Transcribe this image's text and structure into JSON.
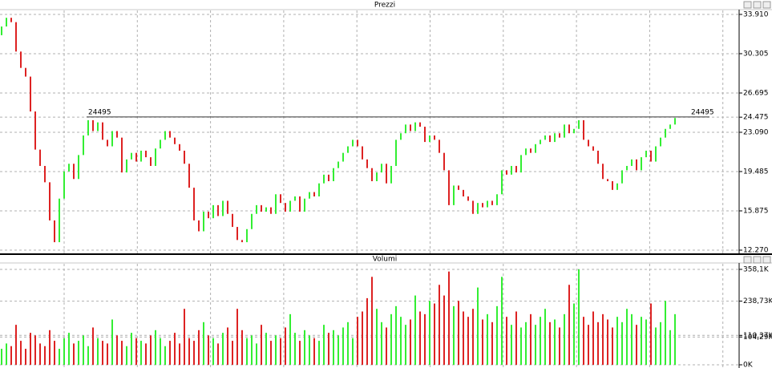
{
  "chart_data": [
    {
      "type": "candlestick",
      "title": "Prezzi",
      "level": 24495,
      "up_color": "#33ee33",
      "down_color": "#dd2222",
      "open": [
        32000,
        32800,
        33600,
        33200,
        30500,
        29000,
        28200,
        25000,
        21500,
        20000,
        18500,
        15000,
        13000,
        17000,
        19500,
        20200,
        18800,
        21000,
        22800,
        24200,
        23200,
        24000,
        22400,
        21800,
        23200,
        22600,
        19400,
        20600,
        21200,
        20400,
        21400,
        20800,
        20000,
        21600,
        22400,
        23200,
        22600,
        22000,
        21400,
        20200,
        18000,
        15000,
        14000,
        15800,
        15200,
        16400,
        15400,
        16800,
        15600,
        14400,
        13200,
        13000,
        14200,
        15600,
        16400,
        15800,
        16200,
        15600,
        17400,
        16600,
        15800,
        16800,
        17200,
        15800,
        17000,
        17600,
        17200,
        18400,
        19200,
        18600,
        19800,
        20400,
        21200,
        21800,
        22400,
        21800,
        20600,
        19800,
        18600,
        19400,
        20200,
        18400,
        20000,
        22400,
        23000,
        23800,
        23200,
        24000,
        23600,
        22200,
        22800,
        22400,
        21200,
        19600,
        16400,
        18200,
        17800,
        17200,
        16800,
        15600,
        16600,
        16200,
        16800,
        16400,
        17400,
        19600,
        19200,
        20000,
        19400,
        21000,
        21600,
        21200,
        22000,
        22400,
        22800,
        22200,
        23000,
        22600,
        23800,
        23000,
        23400,
        24200,
        22400,
        21800,
        21400,
        20200,
        18800,
        18600,
        17800,
        18400,
        19600,
        20000,
        20600,
        19600,
        20800,
        21400,
        20400,
        21800,
        22600,
        23400,
        23800
      ],
      "close": [
        32800,
        33600,
        33200,
        30500,
        29000,
        28200,
        25000,
        21500,
        20000,
        18500,
        15000,
        13000,
        17000,
        19500,
        20200,
        18800,
        21000,
        22800,
        24200,
        23200,
        24000,
        22400,
        21800,
        23200,
        22600,
        19400,
        20600,
        21200,
        20400,
        21400,
        20800,
        20000,
        21600,
        22400,
        23200,
        22600,
        22000,
        21400,
        20200,
        18000,
        15000,
        14000,
        15800,
        15200,
        16400,
        15400,
        16800,
        15600,
        14400,
        13200,
        13000,
        14200,
        15600,
        16400,
        15800,
        16200,
        15600,
        17400,
        16600,
        15800,
        16800,
        17200,
        15800,
        17000,
        17600,
        17200,
        18400,
        19200,
        18600,
        19800,
        20400,
        21200,
        21800,
        22400,
        21800,
        20600,
        19800,
        18600,
        19400,
        20200,
        18400,
        20000,
        22400,
        23000,
        23800,
        23200,
        24000,
        23600,
        22200,
        22800,
        22400,
        21200,
        19600,
        16400,
        18200,
        17800,
        17200,
        16800,
        15600,
        16600,
        16200,
        16800,
        16400,
        17400,
        19600,
        19200,
        20000,
        19400,
        21000,
        21600,
        21200,
        22000,
        22400,
        22800,
        22200,
        23000,
        22600,
        23800,
        23000,
        23400,
        24200,
        22400,
        21800,
        21400,
        20200,
        18800,
        18600,
        17800,
        18400,
        19600,
        20000,
        20600,
        19600,
        20800,
        21400,
        20400,
        21800,
        22600,
        23400,
        23800,
        24400
      ],
      "ylim": [
        11975,
        34350
      ],
      "yticks": [
        {
          "value": 33910,
          "label": "33.910"
        },
        {
          "value": 30305,
          "label": "30.305"
        },
        {
          "value": 26695,
          "label": "26.695"
        },
        {
          "value": 24475,
          "label": "24.475"
        },
        {
          "value": 23090,
          "label": "23.090"
        },
        {
          "value": 19485,
          "label": "19.485"
        },
        {
          "value": 15875,
          "label": "15.875"
        },
        {
          "value": 12270,
          "label": "12.270"
        }
      ]
    },
    {
      "type": "bar",
      "title": "Volumi",
      "values": [
        60000,
        80000,
        70000,
        150000,
        90000,
        60000,
        120000,
        110000,
        80000,
        70000,
        130000,
        90000,
        60000,
        100000,
        120000,
        80000,
        90000,
        110000,
        70000,
        140000,
        100000,
        90000,
        80000,
        170000,
        110000,
        90000,
        70000,
        120000,
        100000,
        90000,
        80000,
        110000,
        130000,
        100000,
        70000,
        90000,
        120000,
        80000,
        210000,
        100000,
        90000,
        130000,
        160000,
        110000,
        100000,
        80000,
        120000,
        140000,
        90000,
        210000,
        130000,
        100000,
        110000,
        80000,
        150000,
        120000,
        90000,
        110000,
        100000,
        140000,
        190000,
        120000,
        90000,
        130000,
        110000,
        100000,
        90000,
        150000,
        120000,
        130000,
        110000,
        140000,
        160000,
        100000,
        180000,
        200000,
        250000,
        330000,
        210000,
        160000,
        140000,
        190000,
        220000,
        180000,
        150000,
        170000,
        260000,
        200000,
        190000,
        240000,
        230000,
        300000,
        260000,
        350000,
        220000,
        240000,
        200000,
        180000,
        210000,
        290000,
        170000,
        190000,
        160000,
        220000,
        330000,
        180000,
        150000,
        200000,
        140000,
        160000,
        190000,
        150000,
        180000,
        210000,
        160000,
        170000,
        140000,
        190000,
        300000,
        230000,
        358000,
        180000,
        150000,
        200000,
        160000,
        190000,
        170000,
        140000,
        180000,
        160000,
        210000,
        190000,
        150000,
        180000,
        170000,
        230000,
        140000,
        160000,
        240000,
        130000,
        190000
      ],
      "ylim": [
        0,
        376000
      ],
      "yticks": [
        {
          "value": 358100,
          "label": "358,1K"
        },
        {
          "value": 238730,
          "label": "238,73K"
        },
        {
          "value": 110370,
          "label": "110,37K"
        },
        {
          "value": 104290,
          "label": "104,29K"
        },
        {
          "value": 0,
          "label": "0K"
        }
      ]
    }
  ]
}
